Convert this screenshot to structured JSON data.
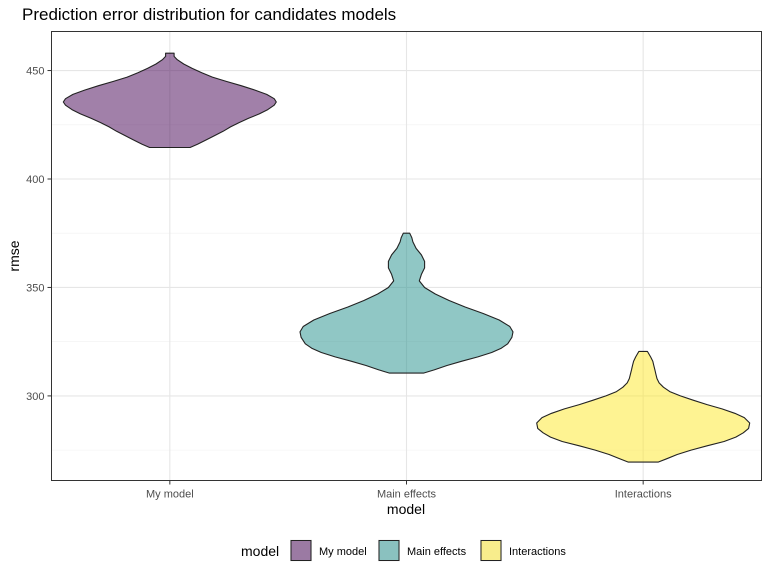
{
  "chart_data": {
    "type": "violin",
    "title": "Prediction error distribution for candidates models",
    "xlabel": "model",
    "ylabel": "rmse",
    "categories": [
      "My model",
      "Main effects",
      "Interactions"
    ],
    "ylim": [
      261,
      468
    ],
    "yticks": [
      300,
      350,
      400,
      450
    ],
    "grid": true,
    "legend": {
      "title": "model",
      "position": "bottom",
      "entries": [
        "My model",
        "Main effects",
        "Interactions"
      ]
    },
    "series": [
      {
        "name": "My model",
        "color": "#440154",
        "opacity": 0.5,
        "min": 414.5,
        "max": 458,
        "profile": [
          [
            414.5,
            0.19
          ],
          [
            416,
            0.26
          ],
          [
            418,
            0.34
          ],
          [
            420,
            0.42
          ],
          [
            422,
            0.5
          ],
          [
            424,
            0.57
          ],
          [
            426,
            0.65
          ],
          [
            428,
            0.74
          ],
          [
            430,
            0.84
          ],
          [
            432,
            0.92
          ],
          [
            434,
            0.98
          ],
          [
            435.5,
            1.0
          ],
          [
            437,
            0.98
          ],
          [
            439,
            0.91
          ],
          [
            441,
            0.8
          ],
          [
            443,
            0.67
          ],
          [
            445,
            0.53
          ],
          [
            447,
            0.4
          ],
          [
            449,
            0.3
          ],
          [
            451,
            0.21
          ],
          [
            453,
            0.13
          ],
          [
            455,
            0.07
          ],
          [
            456.5,
            0.04
          ],
          [
            458,
            0.04
          ]
        ]
      },
      {
        "name": "Main effects",
        "color": "#21908C",
        "opacity": 0.5,
        "min": 310.5,
        "max": 375,
        "profile": [
          [
            310.5,
            0.16
          ],
          [
            312,
            0.26
          ],
          [
            314,
            0.38
          ],
          [
            316,
            0.52
          ],
          [
            318,
            0.67
          ],
          [
            320,
            0.8
          ],
          [
            322,
            0.89
          ],
          [
            324,
            0.95
          ],
          [
            327,
            0.99
          ],
          [
            329.5,
            1.0
          ],
          [
            332,
            0.97
          ],
          [
            335,
            0.87
          ],
          [
            338,
            0.72
          ],
          [
            341,
            0.55
          ],
          [
            344,
            0.4
          ],
          [
            347,
            0.27
          ],
          [
            350,
            0.17
          ],
          [
            353,
            0.12
          ],
          [
            356,
            0.14
          ],
          [
            359,
            0.17
          ],
          [
            362,
            0.17
          ],
          [
            365,
            0.14
          ],
          [
            368,
            0.09
          ],
          [
            371,
            0.06
          ],
          [
            373,
            0.05
          ],
          [
            375,
            0.03
          ]
        ]
      },
      {
        "name": "Interactions",
        "color": "#FDE725",
        "opacity": 0.5,
        "min": 269.5,
        "max": 320.5,
        "profile": [
          [
            269.5,
            0.14
          ],
          [
            271,
            0.22
          ],
          [
            273,
            0.32
          ],
          [
            275,
            0.45
          ],
          [
            277,
            0.6
          ],
          [
            279,
            0.76
          ],
          [
            281,
            0.87
          ],
          [
            283,
            0.94
          ],
          [
            285,
            0.99
          ],
          [
            287.5,
            1.0
          ],
          [
            290,
            0.95
          ],
          [
            292,
            0.86
          ],
          [
            294,
            0.74
          ],
          [
            296,
            0.6
          ],
          [
            298,
            0.47
          ],
          [
            300,
            0.35
          ],
          [
            302,
            0.25
          ],
          [
            304,
            0.19
          ],
          [
            306,
            0.15
          ],
          [
            308,
            0.13
          ],
          [
            310,
            0.12
          ],
          [
            312,
            0.11
          ],
          [
            314,
            0.1
          ],
          [
            316,
            0.09
          ],
          [
            318,
            0.07
          ],
          [
            320.5,
            0.04
          ]
        ]
      }
    ]
  }
}
